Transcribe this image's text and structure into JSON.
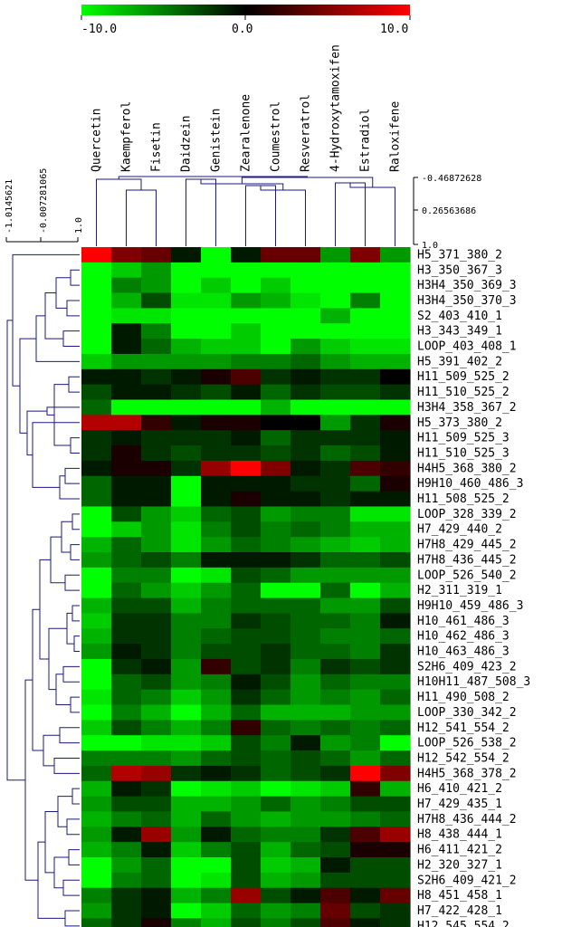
{
  "chart_data": {
    "type": "heatmap",
    "color_scale": {
      "min": -10.0,
      "mid": 0.0,
      "max": 10.0,
      "min_color": "#00ff00",
      "mid_color": "#000000",
      "max_color": "#ff0000",
      "tick_labels": [
        "-10.0",
        "0.0",
        "10.0"
      ]
    },
    "columns": [
      "Quercetin",
      "Kaempferol",
      "Fisetin",
      "Daidzein",
      "Genistein",
      "Zearalenone",
      "Coumestrol",
      "Resveratrol",
      "4-Hydroxytamoxifen",
      "Estradiol",
      "Raloxifene"
    ],
    "rows": [
      "H5_371_380_2",
      "H3_350_367_3",
      "H3H4_350_369_3",
      "H3H4_350_370_3",
      "S2_403_410_1",
      "H3_343_349_1",
      "LOOP_403_408_1",
      "H5_391_402_2",
      "H11_509_525_2",
      "H11_510_525_2",
      "H3H4_358_367_2",
      "H5_373_380_2",
      "H11_509_525_3",
      "H11_510_525_3",
      "H4H5_368_380_2",
      "H9H10_460_486_3",
      "H11_508_525_2",
      "LOOP_328_339_2",
      "H7_429_440_2",
      "H7H8_429_445_2",
      "H7H8_436_445_2",
      "LOOP_526_540_2",
      "H2_311_319_1",
      "H9H10_459_486_3",
      "H10_461_486_3",
      "H10_462_486_3",
      "H10_463_486_3",
      "S2H6_409_423_2",
      "H10H11_487_508_3",
      "H11_490_508_2",
      "LOOP_330_342_2",
      "H12_541_554_2",
      "LOOP_526_538_2",
      "H12_542_554_2",
      "H4H5_368_378_2",
      "H6_410_421_2",
      "H7_429_435_1",
      "H7H8_436_444_2",
      "H8_438_444_1",
      "H6_411_421_2",
      "H2_320_327_1",
      "S2H6_409_421_2",
      "H8_451_458_1",
      "H7_422_428_1",
      "H12_545_554_2"
    ],
    "values": [
      [
        10,
        5,
        4,
        -1,
        -10,
        -1,
        4,
        4,
        -6,
        5,
        -6
      ],
      [
        -10,
        -8,
        -6,
        -10,
        -10,
        -10,
        -10,
        -10,
        -10,
        -10,
        -10
      ],
      [
        -10,
        -5,
        -6,
        -10,
        -8,
        -10,
        -8,
        -10,
        -10,
        -10,
        -10
      ],
      [
        -10,
        -7,
        -3,
        -9,
        -9,
        -6,
        -7,
        -9,
        -10,
        -5,
        -10
      ],
      [
        -10,
        -9,
        -9,
        -10,
        -10,
        -10,
        -10,
        -10,
        -7,
        -10,
        -10
      ],
      [
        -10,
        -1,
        -5,
        -10,
        -10,
        -8,
        -10,
        -10,
        -10,
        -10,
        -10
      ],
      [
        -10,
        -1,
        -4,
        -7,
        -8,
        -8,
        -10,
        -6,
        -8,
        -9,
        -9
      ],
      [
        -8,
        -6,
        -6,
        -6,
        -6,
        -5,
        -5,
        -4,
        -6,
        -7,
        -7
      ],
      [
        -1,
        -1,
        -2,
        -1,
        1,
        3,
        -2,
        -1,
        -2,
        -2,
        0
      ],
      [
        -3,
        -1,
        -1,
        -2,
        -3,
        -1,
        -4,
        -2,
        -3,
        -3,
        -2
      ],
      [
        -4,
        -10,
        -10,
        -10,
        -10,
        -10,
        -7,
        -10,
        -10,
        -10,
        -10
      ],
      [
        7,
        7,
        2,
        -1,
        1,
        1,
        0,
        0,
        -6,
        -2,
        1
      ],
      [
        -2,
        -1,
        -2,
        -2,
        -2,
        -1,
        -4,
        -2,
        -2,
        -2,
        -1
      ],
      [
        -2,
        1,
        -2,
        -3,
        -2,
        -2,
        -3,
        -2,
        -4,
        -3,
        -1
      ],
      [
        -1,
        1,
        1,
        -2,
        6,
        10,
        5,
        -1,
        -2,
        3,
        2
      ],
      [
        -4,
        -1,
        -1,
        -10,
        -1,
        -1,
        -1,
        -2,
        -2,
        -4,
        1
      ],
      [
        -4,
        -1,
        -1,
        -10,
        -1,
        1,
        -1,
        -1,
        -2,
        -1,
        -1
      ],
      [
        -10,
        -3,
        -6,
        -8,
        -4,
        -3,
        -6,
        -5,
        -5,
        -9,
        -9
      ],
      [
        -10,
        -8,
        -6,
        -9,
        -5,
        -3,
        -5,
        -4,
        -5,
        -7,
        -7
      ],
      [
        -7,
        -4,
        -6,
        -9,
        -6,
        -4,
        -5,
        -6,
        -7,
        -8,
        -7
      ],
      [
        -6,
        -4,
        -3,
        -5,
        -1,
        -1,
        -1,
        -2,
        -4,
        -4,
        -3
      ],
      [
        -10,
        -5,
        -5,
        -10,
        -9,
        -3,
        -4,
        -6,
        -6,
        -6,
        -6
      ],
      [
        -10,
        -4,
        -6,
        -8,
        -6,
        -4,
        -10,
        -10,
        -4,
        -10,
        -7
      ],
      [
        -7,
        -3,
        -3,
        -7,
        -5,
        -4,
        -4,
        -4,
        -6,
        -6,
        -3
      ],
      [
        -8,
        -2,
        -2,
        -5,
        -5,
        -2,
        -3,
        -4,
        -4,
        -5,
        -1
      ],
      [
        -7,
        -2,
        -2,
        -5,
        -4,
        -3,
        -3,
        -4,
        -5,
        -5,
        -4
      ],
      [
        -6,
        -1,
        -2,
        -5,
        -3,
        -3,
        -2,
        -4,
        -4,
        -5,
        -2
      ],
      [
        -10,
        -2,
        -1,
        -6,
        2,
        -3,
        -2,
        -5,
        -2,
        -3,
        -2
      ],
      [
        -10,
        -4,
        -3,
        -6,
        -5,
        -1,
        -3,
        -6,
        -4,
        -5,
        -5
      ],
      [
        -9,
        -4,
        -5,
        -8,
        -6,
        -2,
        -4,
        -6,
        -5,
        -6,
        -4
      ],
      [
        -10,
        -5,
        -7,
        -10,
        -7,
        -4,
        -7,
        -7,
        -7,
        -6,
        -6
      ],
      [
        -8,
        -3,
        -5,
        -7,
        -5,
        2,
        -4,
        -5,
        -4,
        -5,
        -4
      ],
      [
        -10,
        -10,
        -9,
        -9,
        -8,
        -3,
        -5,
        -1,
        -6,
        -5,
        -10
      ],
      [
        -5,
        -5,
        -5,
        -6,
        -4,
        -3,
        -4,
        -3,
        -4,
        -6,
        -4
      ],
      [
        -4,
        7,
        6,
        -2,
        -1,
        -2,
        -4,
        -3,
        -2,
        10,
        5
      ],
      [
        -7,
        -1,
        -2,
        -10,
        -9,
        -8,
        -10,
        -9,
        -8,
        2,
        -7
      ],
      [
        -6,
        -3,
        -3,
        -7,
        -7,
        -6,
        -4,
        -6,
        -5,
        -3,
        -3
      ],
      [
        -7,
        -5,
        -4,
        -7,
        -4,
        -6,
        -7,
        -6,
        -6,
        -5,
        -4
      ],
      [
        -6,
        -1,
        6,
        -6,
        -1,
        -4,
        -5,
        -5,
        -2,
        3,
        6
      ],
      [
        -7,
        -5,
        -1,
        -8,
        -5,
        -3,
        -7,
        -4,
        -3,
        1,
        1
      ],
      [
        -10,
        -6,
        -4,
        -10,
        -10,
        -3,
        -8,
        -7,
        -1,
        -3,
        -3
      ],
      [
        -10,
        -5,
        -4,
        -10,
        -9,
        -3,
        -7,
        -6,
        -3,
        -3,
        -3
      ],
      [
        -5,
        -2,
        -1,
        -7,
        -5,
        6,
        -3,
        -1,
        3,
        -1,
        4
      ],
      [
        -6,
        -2,
        -1,
        -10,
        -8,
        -4,
        -6,
        -5,
        4,
        -3,
        -2
      ],
      [
        -4,
        -2,
        1,
        -5,
        -7,
        -3,
        -5,
        -3,
        3,
        -1,
        -2
      ]
    ],
    "column_dendrogram_axis": {
      "tick_labels": [
        "-0.46872628",
        "0.26563686",
        "1.0"
      ]
    },
    "row_dendrogram_axis": {
      "tick_labels": [
        "-1.0145621",
        "-0.007281065",
        "1.0"
      ]
    }
  }
}
